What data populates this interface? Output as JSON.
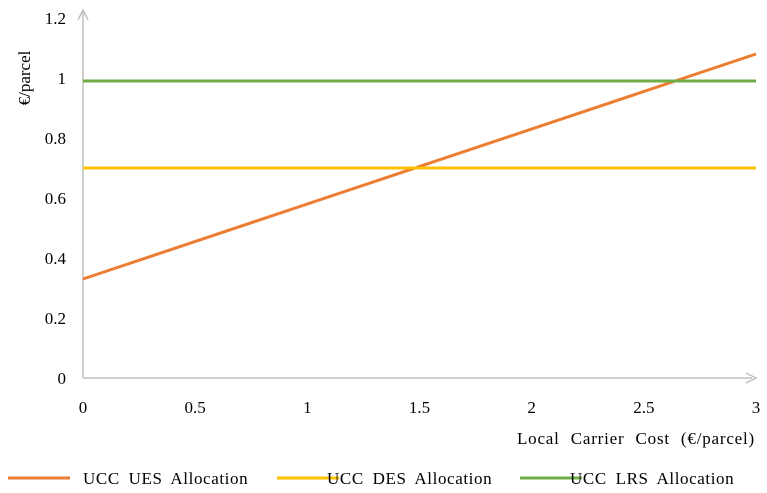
{
  "chart_data": {
    "type": "line",
    "title": "",
    "xlabel": "Local Carrier Cost (€/parcel)",
    "ylabel": "€/parcel",
    "xlim": [
      0,
      3
    ],
    "ylim": [
      0,
      1.2
    ],
    "x_ticks": [
      "0",
      "0.5",
      "1",
      "1.5",
      "2",
      "2.5",
      "3"
    ],
    "y_ticks": [
      "0",
      "0.2",
      "0.4",
      "0.6",
      "0.8",
      "1",
      "1.2"
    ],
    "grid": false,
    "legend_position": "bottom",
    "series": [
      {
        "name": "UCC UES Allocation",
        "color": "#ED7D31",
        "x": [
          0,
          3
        ],
        "y": [
          0.33,
          1.08
        ]
      },
      {
        "name": "UCC DES Allocation",
        "color": "#FFC000",
        "x": [
          0,
          3
        ],
        "y": [
          0.7,
          0.7
        ]
      },
      {
        "name": "UCC LRS Allocation",
        "color": "#70AD47",
        "x": [
          0,
          3
        ],
        "y": [
          0.99,
          0.99
        ]
      }
    ],
    "axis_color": "#BFBFBF"
  }
}
